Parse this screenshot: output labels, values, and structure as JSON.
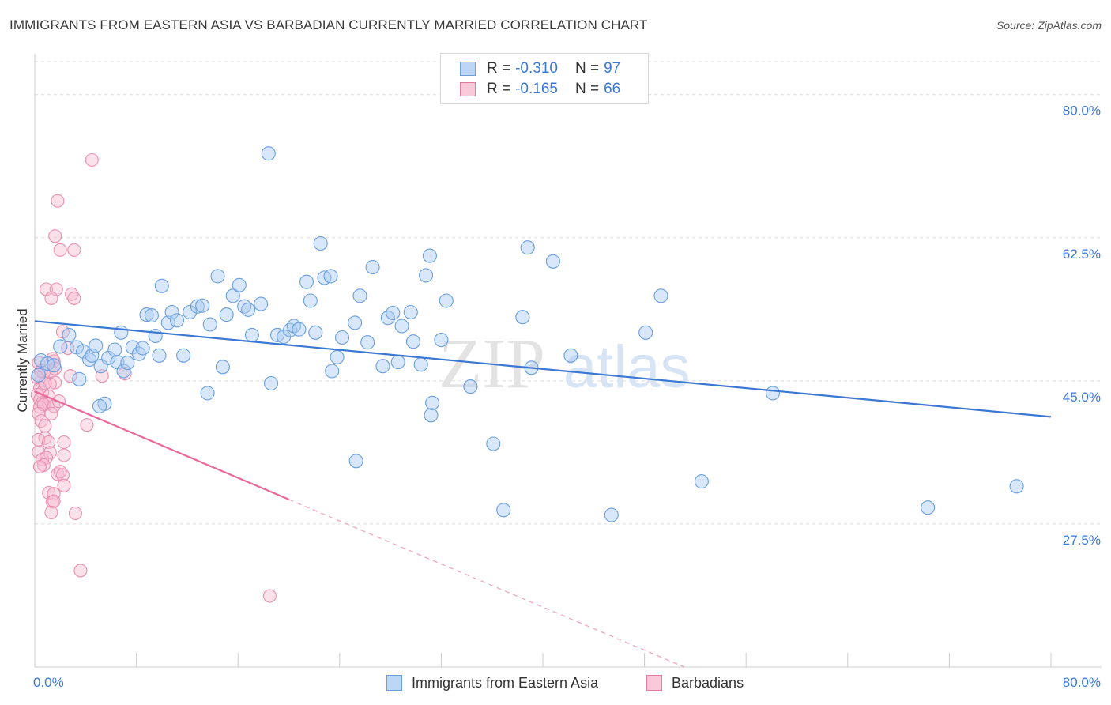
{
  "header": {
    "title": "IMMIGRANTS FROM EASTERN ASIA VS BARBADIAN CURRENTLY MARRIED CORRELATION CHART",
    "source": "Source: ZipAtlas.com"
  },
  "legend": {
    "rows": [
      {
        "r_label": "R =",
        "r_value": "-0.310",
        "n_label": "N =",
        "n_value": "97",
        "color": "#a9c9f2",
        "border": "#6a9fe0"
      },
      {
        "r_label": "R =",
        "r_value": "-0.165",
        "n_label": "N =",
        "n_value": "66",
        "color": "#f7bcd0",
        "border": "#e87aa0"
      }
    ]
  },
  "bottom_legend": {
    "series1": "Immigrants from Eastern Asia",
    "series2": "Barbadians"
  },
  "watermark": {
    "zip": "ZIP",
    "atlas": "atlas"
  },
  "chart_data": {
    "type": "scatter",
    "title": "IMMIGRANTS FROM EASTERN ASIA VS BARBADIAN CURRENTLY MARRIED CORRELATION CHART",
    "xlabel": "",
    "ylabel": "Currently Married",
    "xlim": [
      0,
      80
    ],
    "ylim": [
      10,
      85
    ],
    "x_tick_labels": [
      "0.0%",
      "80.0%"
    ],
    "y_ticks": [
      27.5,
      45.0,
      62.5,
      80.0
    ],
    "y_tick_labels": [
      "27.5%",
      "45.0%",
      "62.5%",
      "80.0%"
    ],
    "grid": true,
    "legend_position": "top-center",
    "colors": {
      "blue": "#3b78d4",
      "pink": "#e8699a",
      "blue_fill": "#a9c9f2",
      "pink_fill": "#f7bcd0"
    },
    "series": [
      {
        "name": "Immigrants from Eastern Asia",
        "color": "#3b78d4",
        "trend": {
          "x": [
            0,
            80
          ],
          "y": [
            52.3,
            40.6
          ]
        },
        "points": [
          [
            0.3,
            45.7
          ],
          [
            0.5,
            47.5
          ],
          [
            1,
            47.1
          ],
          [
            1.5,
            46.9
          ],
          [
            2,
            49.2
          ],
          [
            2.7,
            50.6
          ],
          [
            3.3,
            49.1
          ],
          [
            3.5,
            45.2
          ],
          [
            3.8,
            48.6
          ],
          [
            4.3,
            47.6
          ],
          [
            4.5,
            48.1
          ],
          [
            4.8,
            49.3
          ],
          [
            5.2,
            46.8
          ],
          [
            5.5,
            42.2
          ],
          [
            5.8,
            47.8
          ],
          [
            6.3,
            48.8
          ],
          [
            6.5,
            47.3
          ],
          [
            6.8,
            50.9
          ],
          [
            7,
            46.2
          ],
          [
            7.3,
            47.2
          ],
          [
            7.7,
            49.1
          ],
          [
            8.2,
            48.3
          ],
          [
            8.5,
            49.0
          ],
          [
            8.8,
            53.1
          ],
          [
            9.2,
            53.0
          ],
          [
            9.5,
            50.5
          ],
          [
            9.8,
            48.1
          ],
          [
            10,
            56.6
          ],
          [
            10.5,
            52.1
          ],
          [
            10.8,
            53.4
          ],
          [
            11.2,
            52.4
          ],
          [
            11.7,
            48.1
          ],
          [
            12.2,
            53.4
          ],
          [
            12.8,
            54.1
          ],
          [
            13.2,
            54.2
          ],
          [
            13.6,
            43.5
          ],
          [
            13.8,
            51.9
          ],
          [
            14.4,
            57.8
          ],
          [
            14.8,
            46.7
          ],
          [
            15.1,
            53.1
          ],
          [
            15.6,
            55.4
          ],
          [
            16.1,
            56.7
          ],
          [
            16.5,
            54.1
          ],
          [
            16.8,
            53.7
          ],
          [
            17.1,
            50.6
          ],
          [
            17.8,
            54.4
          ],
          [
            18.4,
            72.8
          ],
          [
            18.6,
            44.7
          ],
          [
            19.1,
            50.6
          ],
          [
            19.6,
            50.4
          ],
          [
            20.1,
            51.2
          ],
          [
            20.4,
            51.7
          ],
          [
            20.8,
            51.3
          ],
          [
            21.4,
            57.1
          ],
          [
            21.7,
            54.8
          ],
          [
            22.1,
            50.9
          ],
          [
            22.5,
            61.8
          ],
          [
            22.8,
            57.6
          ],
          [
            23.3,
            57.8
          ],
          [
            23.4,
            46.2
          ],
          [
            23.8,
            47.9
          ],
          [
            24.2,
            50.3
          ],
          [
            25.2,
            52.1
          ],
          [
            25.6,
            55.4
          ],
          [
            26.2,
            49.7
          ],
          [
            26.6,
            58.9
          ],
          [
            27.4,
            46.8
          ],
          [
            27.8,
            52.7
          ],
          [
            28.2,
            53.3
          ],
          [
            28.6,
            47.3
          ],
          [
            28.9,
            51.7
          ],
          [
            29.6,
            53.4
          ],
          [
            29.8,
            49.8
          ],
          [
            30.4,
            47.0
          ],
          [
            30.8,
            57.9
          ],
          [
            31.1,
            60.3
          ],
          [
            31.2,
            40.8
          ],
          [
            31.3,
            42.3
          ],
          [
            32,
            50.0
          ],
          [
            32.4,
            54.8
          ],
          [
            34.3,
            44.3
          ],
          [
            36.1,
            37.3
          ],
          [
            36.9,
            29.2
          ],
          [
            38.4,
            52.8
          ],
          [
            38.8,
            61.3
          ],
          [
            39.1,
            46.6
          ],
          [
            40.8,
            59.6
          ],
          [
            42.2,
            48.1
          ],
          [
            45.4,
            28.6
          ],
          [
            48.1,
            50.9
          ],
          [
            49.3,
            55.4
          ],
          [
            52.5,
            32.7
          ],
          [
            58.1,
            43.5
          ],
          [
            70.3,
            29.5
          ],
          [
            77.3,
            32.1
          ],
          [
            5.1,
            41.9
          ],
          [
            25.3,
            35.2
          ]
        ]
      },
      {
        "name": "Barbadians",
        "color": "#e8699a",
        "trend": {
          "x": [
            0,
            20
          ],
          "y": [
            43.7,
            30.5
          ]
        },
        "trend_dashed": {
          "x": [
            20,
            80
          ],
          "y": [
            30.5,
            -9.0
          ]
        },
        "points": [
          [
            4.5,
            72.0
          ],
          [
            1.8,
            67.0
          ],
          [
            1.6,
            62.7
          ],
          [
            2,
            61.0
          ],
          [
            3.1,
            61.0
          ],
          [
            0.9,
            56.2
          ],
          [
            1.7,
            56.2
          ],
          [
            1.3,
            55.1
          ],
          [
            2.9,
            55.6
          ],
          [
            3.1,
            55.1
          ],
          [
            2.2,
            51.0
          ],
          [
            2.6,
            49.0
          ],
          [
            1.4,
            47.7
          ],
          [
            1.5,
            47.4
          ],
          [
            1.3,
            46.2
          ],
          [
            1.6,
            46.5
          ],
          [
            0.7,
            46.0
          ],
          [
            2.8,
            45.6
          ],
          [
            5.3,
            45.6
          ],
          [
            7.1,
            45.9
          ],
          [
            0.5,
            45.0
          ],
          [
            1.6,
            44.8
          ],
          [
            1.2,
            44.6
          ],
          [
            0.4,
            44.1
          ],
          [
            0.6,
            43.6
          ],
          [
            0.2,
            43.3
          ],
          [
            1.1,
            43.1
          ],
          [
            0.4,
            42.7
          ],
          [
            0.6,
            42.3
          ],
          [
            1.1,
            42.2
          ],
          [
            0.4,
            41.8
          ],
          [
            0.7,
            42.1
          ],
          [
            1.5,
            41.9
          ],
          [
            0.3,
            41.0
          ],
          [
            1.3,
            41.0
          ],
          [
            0.5,
            40.1
          ],
          [
            0.8,
            39.5
          ],
          [
            4.1,
            39.6
          ],
          [
            0.8,
            38.0
          ],
          [
            0.3,
            37.8
          ],
          [
            1.1,
            37.5
          ],
          [
            2.3,
            37.5
          ],
          [
            0.3,
            36.3
          ],
          [
            1.2,
            36.2
          ],
          [
            2.3,
            35.9
          ],
          [
            0.6,
            35.4
          ],
          [
            0.9,
            35.6
          ],
          [
            0.7,
            34.7
          ],
          [
            0.4,
            34.5
          ],
          [
            1.8,
            33.6
          ],
          [
            2,
            33.9
          ],
          [
            2.2,
            33.5
          ],
          [
            2.3,
            32.2
          ],
          [
            1.1,
            31.3
          ],
          [
            1.5,
            31.2
          ],
          [
            1.4,
            30.2
          ],
          [
            1.5,
            30.3
          ],
          [
            1.3,
            28.9
          ],
          [
            3.2,
            28.8
          ],
          [
            3.6,
            21.8
          ],
          [
            18.5,
            18.7
          ],
          [
            0.3,
            47.2
          ],
          [
            0.5,
            46.2
          ],
          [
            0.2,
            45.4
          ],
          [
            1.9,
            42.5
          ],
          [
            0.8,
            44.7
          ]
        ]
      }
    ]
  }
}
